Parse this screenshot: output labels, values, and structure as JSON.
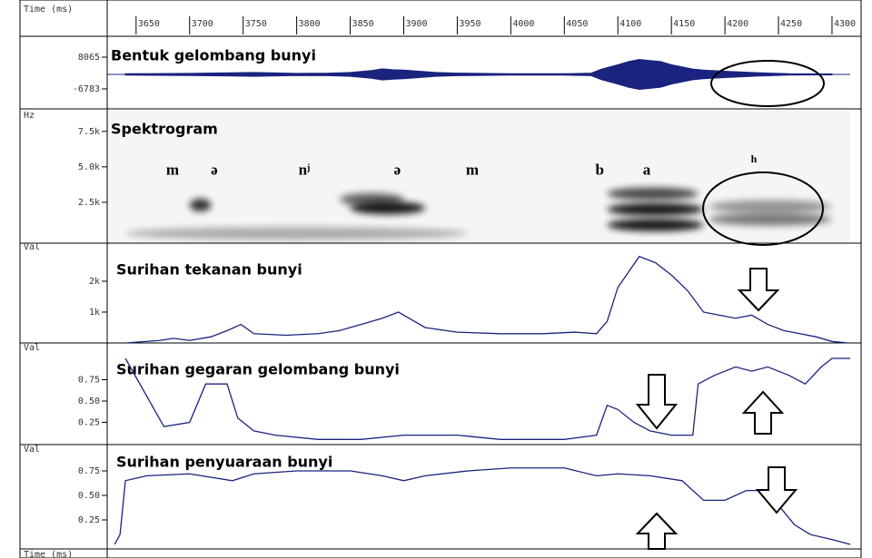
{
  "time_axis": {
    "label": "Time (ms)",
    "xlim": [
      3623,
      4317
    ],
    "xticks": [
      3650,
      3700,
      3750,
      3800,
      3850,
      3900,
      3950,
      4000,
      4050,
      4100,
      4150,
      4200,
      4250,
      4300
    ]
  },
  "chart_data": [
    {
      "type": "waveform",
      "title": "Bentuk gelombang bunyi",
      "ylim": [
        -6783,
        8065
      ],
      "yticks": [
        8065,
        -6783
      ],
      "x": [
        3640,
        3670,
        3700,
        3730,
        3760,
        3800,
        3830,
        3850,
        3870,
        3880,
        3890,
        3900,
        3930,
        3950,
        4000,
        4050,
        4075,
        4085,
        4100,
        4110,
        4120,
        4130,
        4140,
        4150,
        4160,
        4170,
        4180,
        4200,
        4230,
        4260,
        4300
      ],
      "values": [
        300,
        400,
        500,
        700,
        900,
        500,
        600,
        900,
        1800,
        2600,
        2200,
        2000,
        900,
        600,
        300,
        300,
        600,
        2500,
        4500,
        6000,
        7000,
        6500,
        6000,
        4500,
        3500,
        2500,
        2000,
        1500,
        800,
        300,
        200
      ],
      "color": "#1a237e"
    },
    {
      "type": "spectrogram",
      "title": "Spektrogram",
      "ylim": [
        0,
        8000
      ],
      "yticks": [
        {
          "value": 7500,
          "label": "7.5k"
        },
        {
          "value": 5000,
          "label": "5.0k"
        },
        {
          "value": 2500,
          "label": "2.5k"
        }
      ],
      "segments": [
        {
          "label": "m",
          "x": 3684,
          "freq": 4700
        },
        {
          "label": "ə",
          "x": 3723,
          "freq": 4700
        },
        {
          "label": "nʲ",
          "x": 3807,
          "freq": 4700
        },
        {
          "label": "ə",
          "x": 3894,
          "freq": 4700
        },
        {
          "label": "m",
          "x": 3964,
          "freq": 4700
        },
        {
          "label": "b",
          "x": 4083,
          "freq": 4700
        },
        {
          "label": "a",
          "x": 4127,
          "freq": 4700
        },
        {
          "label": "h",
          "x": 4227,
          "freq": 5500
        }
      ],
      "bands": [
        {
          "x": [
            3700,
            3720
          ],
          "freq": 2300,
          "strength": 0.8
        },
        {
          "x": [
            3840,
            3900
          ],
          "freq": 2700,
          "strength": 0.6
        },
        {
          "x": [
            3850,
            3920
          ],
          "freq": 2100,
          "strength": 0.9
        },
        {
          "x": [
            3640,
            3960
          ],
          "freq": 300,
          "strength": 0.3
        },
        {
          "x": [
            4090,
            4175
          ],
          "freq": 3100,
          "strength": 0.7
        },
        {
          "x": [
            4090,
            4180
          ],
          "freq": 2000,
          "strength": 0.9
        },
        {
          "x": [
            4090,
            4180
          ],
          "freq": 900,
          "strength": 0.9
        },
        {
          "x": [
            4185,
            4300
          ],
          "freq": 2200,
          "strength": 0.4
        },
        {
          "x": [
            4185,
            4300
          ],
          "freq": 1300,
          "strength": 0.5
        }
      ]
    },
    {
      "type": "line",
      "title": "Surihan tekanan bunyi",
      "ylim": [
        0,
        2850
      ],
      "yticks": [
        {
          "value": 2000,
          "label": "2k"
        },
        {
          "value": 1000,
          "label": "1k"
        }
      ],
      "color": "#1a237e",
      "x": [
        3640,
        3672,
        3685,
        3700,
        3720,
        3735,
        3748,
        3760,
        3790,
        3820,
        3840,
        3860,
        3880,
        3895,
        3905,
        3920,
        3950,
        3990,
        4030,
        4060,
        4080,
        4090,
        4100,
        4120,
        4135,
        4150,
        4165,
        4180,
        4195,
        4210,
        4225,
        4240,
        4255,
        4270,
        4285,
        4300,
        4315
      ],
      "values": [
        0,
        80,
        150,
        80,
        200,
        400,
        600,
        300,
        250,
        300,
        400,
        600,
        800,
        1000,
        800,
        500,
        350,
        300,
        300,
        350,
        300,
        700,
        1800,
        2800,
        2600,
        2200,
        1700,
        1000,
        900,
        800,
        900,
        600,
        400,
        300,
        200,
        50,
        0
      ]
    },
    {
      "type": "line",
      "title": "Surihan gegaran gelombang bunyi",
      "ylim": [
        0,
        1
      ],
      "yticks": [
        0.75,
        {
          "value": 0.5,
          "label": "0.50"
        },
        0.25
      ],
      "color": "#1a237e",
      "x": [
        3640,
        3676,
        3700,
        3715,
        3735,
        3745,
        3760,
        3780,
        3820,
        3860,
        3900,
        3950,
        3990,
        4050,
        4080,
        4090,
        4100,
        4115,
        4130,
        4150,
        4170,
        4175,
        4190,
        4210,
        4225,
        4240,
        4260,
        4275,
        4290,
        4300,
        4317
      ],
      "values": [
        1,
        0.2,
        0.25,
        0.7,
        0.7,
        0.3,
        0.15,
        0.1,
        0.05,
        0.05,
        0.1,
        0.1,
        0.05,
        0.05,
        0.1,
        0.45,
        0.4,
        0.25,
        0.15,
        0.1,
        0.1,
        0.7,
        0.8,
        0.9,
        0.85,
        0.9,
        0.8,
        0.7,
        0.9,
        1,
        1
      ]
    },
    {
      "type": "line",
      "title": "Surihan penyuaraan bunyi",
      "ylim": [
        0,
        1
      ],
      "yticks": [
        0.75,
        {
          "value": 0.5,
          "label": "0.50"
        },
        0.25
      ],
      "color": "#1a237e",
      "x": [
        3630,
        3635,
        3640,
        3660,
        3700,
        3740,
        3760,
        3800,
        3850,
        3880,
        3900,
        3920,
        3960,
        4000,
        4050,
        4080,
        4100,
        4130,
        4160,
        4180,
        4200,
        4220,
        4240,
        4250,
        4265,
        4280,
        4300,
        4317
      ],
      "values": [
        0,
        0.1,
        0.65,
        0.7,
        0.72,
        0.65,
        0.72,
        0.75,
        0.75,
        0.7,
        0.65,
        0.7,
        0.75,
        0.78,
        0.78,
        0.7,
        0.72,
        0.7,
        0.65,
        0.45,
        0.45,
        0.55,
        0.55,
        0.4,
        0.2,
        0.1,
        0.05,
        0
      ]
    }
  ],
  "axis_labels": {
    "frequency": "Hz",
    "value": "Val"
  }
}
